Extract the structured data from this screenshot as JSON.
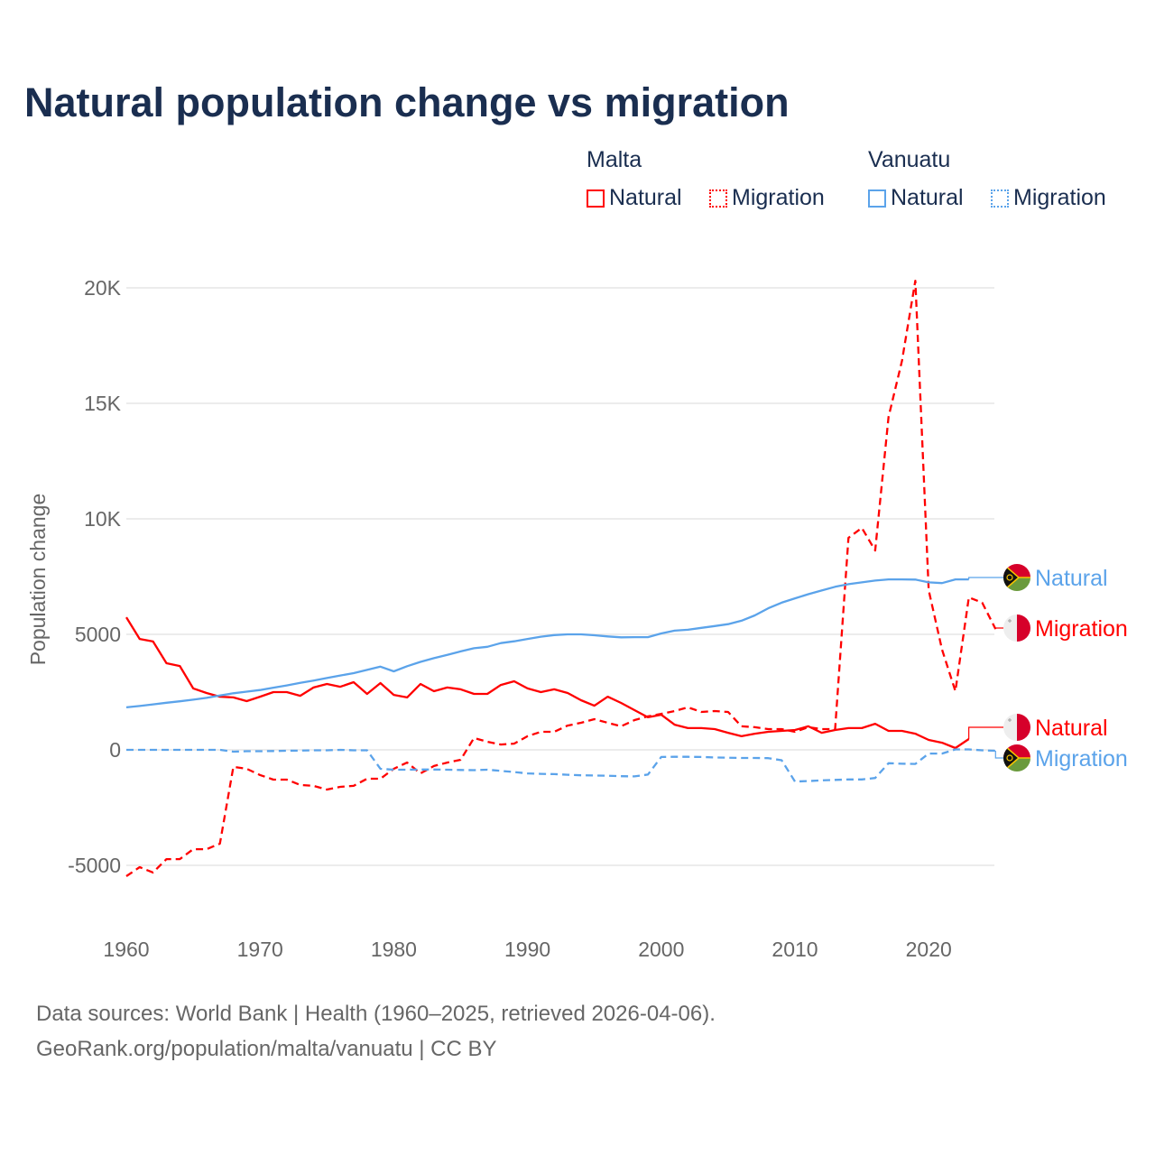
{
  "title": "Natural population change vs migration",
  "legend": {
    "groups": [
      {
        "name": "Malta",
        "items": [
          "Natural",
          "Migration"
        ],
        "color": "#ff0000"
      },
      {
        "name": "Vanuatu",
        "items": [
          "Natural",
          "Migration"
        ],
        "color": "#5ba3ea"
      }
    ]
  },
  "footer": {
    "line1": "Data sources: World Bank | Health (1960–2025, retrieved 2026-04-06).",
    "line2": "GeoRank.org/population/malta/vanuatu | CC BY"
  },
  "chart_data": {
    "type": "line",
    "title": "Natural population change vs migration",
    "xlabel": "",
    "ylabel": "Population change",
    "xlim": [
      1960,
      2025
    ],
    "ylim": [
      -7000,
      21000
    ],
    "xticks": [
      1960,
      1970,
      1980,
      1990,
      2000,
      2010,
      2020
    ],
    "yticks": [
      -5000,
      0,
      5000,
      10000,
      15000,
      20000
    ],
    "ytick_labels": [
      "-5000",
      "0",
      "5000",
      "10K",
      "15K",
      "20K"
    ],
    "grid": true,
    "legend_position": "top-right",
    "series": [
      {
        "name": "Natural",
        "country": "Malta",
        "color": "#ff0000",
        "dash": false,
        "start": 1960,
        "values": [
          5740,
          4800,
          4690,
          3750,
          3630,
          2660,
          2460,
          2300,
          2270,
          2110,
          2300,
          2500,
          2500,
          2340,
          2700,
          2850,
          2730,
          2930,
          2420,
          2890,
          2380,
          2270,
          2850,
          2540,
          2700,
          2620,
          2420,
          2420,
          2810,
          2970,
          2660,
          2500,
          2620,
          2460,
          2150,
          1910,
          2300,
          2030,
          1720,
          1410,
          1520,
          1090,
          940,
          940,
          900,
          740,
          590,
          700,
          780,
          820,
          860,
          1020,
          740,
          860,
          940,
          940,
          1130,
          820,
          820,
          700,
          430,
          310,
          80,
          470
        ]
      },
      {
        "name": "Migration",
        "country": "Malta",
        "color": "#ff0000",
        "dash": true,
        "start": 1960,
        "values": [
          -5470,
          -5080,
          -5310,
          -4730,
          -4730,
          -4300,
          -4300,
          -4060,
          -740,
          -820,
          -1090,
          -1290,
          -1290,
          -1520,
          -1560,
          -1720,
          -1600,
          -1560,
          -1250,
          -1250,
          -820,
          -550,
          -1020,
          -700,
          -550,
          -430,
          510,
          350,
          230,
          270,
          590,
          780,
          780,
          1050,
          1170,
          1330,
          1170,
          1020,
          1290,
          1450,
          1560,
          1680,
          1840,
          1640,
          1680,
          1640,
          1020,
          980,
          900,
          900,
          780,
          980,
          900,
          900,
          9180,
          9610,
          8630,
          14410,
          16840,
          20310,
          6910,
          4340,
          2540,
          6600,
          6370,
          5230
        ]
      },
      {
        "name": "Natural",
        "country": "Vanuatu",
        "color": "#5ba3ea",
        "dash": false,
        "start": 1960,
        "values": [
          1840,
          1900,
          1970,
          2040,
          2100,
          2170,
          2250,
          2350,
          2450,
          2520,
          2590,
          2690,
          2790,
          2900,
          3000,
          3110,
          3220,
          3320,
          3460,
          3600,
          3400,
          3620,
          3810,
          3970,
          4110,
          4260,
          4400,
          4460,
          4620,
          4700,
          4800,
          4900,
          4970,
          5000,
          5000,
          4960,
          4910,
          4870,
          4880,
          4880,
          5040,
          5160,
          5200,
          5280,
          5360,
          5440,
          5590,
          5820,
          6130,
          6370,
          6560,
          6740,
          6900,
          7060,
          7170,
          7250,
          7330,
          7380,
          7380,
          7370,
          7250,
          7220,
          7380,
          7380
        ]
      },
      {
        "name": "Migration",
        "country": "Vanuatu",
        "color": "#5ba3ea",
        "dash": true,
        "start": 1960,
        "values": [
          0,
          0,
          0,
          0,
          0,
          0,
          0,
          0,
          -80,
          -60,
          -60,
          -50,
          -40,
          -30,
          -20,
          -20,
          0,
          -20,
          -20,
          -820,
          -860,
          -860,
          -850,
          -850,
          -860,
          -870,
          -880,
          -860,
          -910,
          -960,
          -1020,
          -1040,
          -1050,
          -1080,
          -1100,
          -1110,
          -1120,
          -1140,
          -1150,
          -1070,
          -310,
          -300,
          -300,
          -310,
          -330,
          -340,
          -350,
          -350,
          -360,
          -450,
          -1370,
          -1350,
          -1320,
          -1300,
          -1280,
          -1280,
          -1220,
          -580,
          -600,
          -610,
          -160,
          -160,
          20,
          20,
          -20,
          -40
        ]
      }
    ],
    "end_labels": [
      {
        "text": "Natural",
        "series": 2,
        "flag": "vanuatu"
      },
      {
        "text": "Migration",
        "series": 1,
        "flag": "malta"
      },
      {
        "text": "Natural",
        "series": 0,
        "flag": "malta"
      },
      {
        "text": "Migration",
        "series": 3,
        "flag": "vanuatu"
      }
    ]
  }
}
